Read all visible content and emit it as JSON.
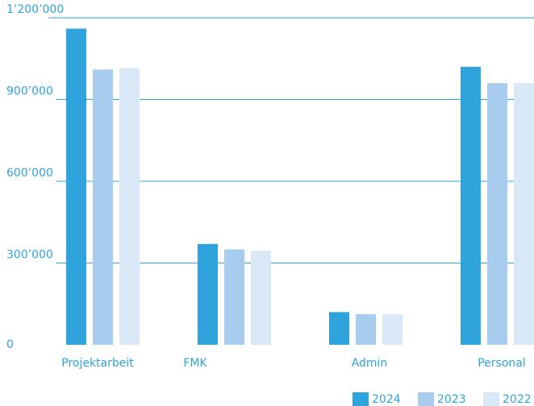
{
  "chart_data": {
    "type": "bar",
    "categories": [
      "Projektarbeit",
      "FMK",
      "Admin",
      "Personal"
    ],
    "series": [
      {
        "name": "2024",
        "color": "#2ea3dc",
        "values": [
          1160000,
          370000,
          120000,
          1020000
        ]
      },
      {
        "name": "2023",
        "color": "#a8ccee",
        "values": [
          1010000,
          350000,
          112000,
          960000
        ]
      },
      {
        "name": "2022",
        "color": "#d9e8f7",
        "values": [
          1015000,
          345000,
          112000,
          960000
        ]
      }
    ],
    "ylim": [
      0,
      1200000
    ],
    "yticks": [
      0,
      {
        "value": 300000,
        "label": "300’000"
      },
      {
        "value": 600000,
        "label": "600’000"
      },
      {
        "value": 900000,
        "label": "900’000"
      },
      {
        "value": 1200000,
        "label": "1’200’000"
      }
    ],
    "grid": true,
    "legend": "bottom-right"
  }
}
